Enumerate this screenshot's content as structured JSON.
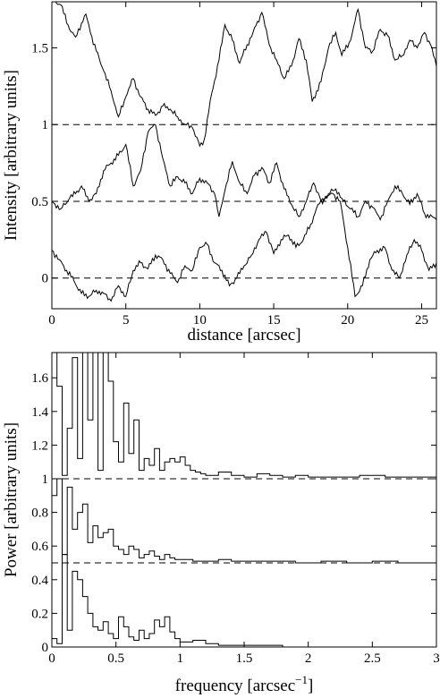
{
  "chart_data": [
    {
      "type": "line",
      "xlabel": "distance [arcsec]",
      "ylabel": "Intensity [arbitrary units]",
      "xlim": [
        0,
        26
      ],
      "ylim": [
        -0.2,
        1.8
      ],
      "xticks": [
        "0",
        "5",
        "10",
        "15",
        "20",
        "25"
      ],
      "yticks": [
        "0",
        "0.5",
        "1",
        "1.5"
      ],
      "reference_levels": [
        0,
        0.5,
        1
      ],
      "series": [
        {
          "x": [
            0,
            0.6,
            1.2,
            1.6,
            2,
            2.3,
            2.6,
            3,
            3.5,
            4,
            4.5,
            5,
            5.5,
            6,
            6.5,
            7,
            7.5,
            8,
            8.5,
            9,
            9.5,
            10,
            10.3,
            10.8,
            11.3,
            11.7,
            12.2,
            12.7,
            13.2,
            13.6,
            14.2,
            14.7,
            15.2,
            15.7,
            16.2,
            16.7,
            17.2,
            17.6,
            18.2,
            18.7,
            19.2,
            19.6,
            20.2,
            20.7,
            21.2,
            21.7,
            22.2,
            22.7,
            23.2,
            23.7,
            24.2,
            24.7,
            25.2,
            25.6,
            26
          ],
          "values": [
            1.82,
            1.78,
            1.62,
            1.57,
            1.66,
            1.72,
            1.6,
            1.48,
            1.35,
            1.22,
            1.05,
            1.18,
            1.3,
            1.18,
            1.1,
            1.06,
            1.12,
            1.1,
            1.05,
            1.0,
            0.98,
            0.86,
            0.9,
            1.2,
            1.42,
            1.65,
            1.55,
            1.4,
            1.52,
            1.6,
            1.73,
            1.52,
            1.42,
            1.3,
            1.38,
            1.56,
            1.42,
            1.15,
            1.28,
            1.5,
            1.6,
            1.45,
            1.55,
            1.75,
            1.5,
            1.48,
            1.62,
            1.58,
            1.42,
            1.45,
            1.55,
            1.5,
            1.6,
            1.52,
            1.38
          ]
        },
        {
          "x": [
            0,
            0.6,
            1.2,
            1.6,
            2,
            2.5,
            3,
            3.5,
            4,
            4.5,
            5,
            5.5,
            6,
            6.5,
            7,
            7.5,
            8,
            8.5,
            9,
            9.5,
            10,
            10.5,
            11,
            11.3,
            11.7,
            12.2,
            12.7,
            13.2,
            13.7,
            14.2,
            14.7,
            15.2,
            15.7,
            16.2,
            16.7,
            17.2,
            17.7,
            18.2,
            18.7,
            19.2,
            19.6,
            20.2,
            20.7,
            21.2,
            21.7,
            22.2,
            22.7,
            23.2,
            23.7,
            24.2,
            24.7,
            25.2,
            26
          ],
          "values": [
            0.5,
            0.45,
            0.52,
            0.55,
            0.6,
            0.5,
            0.55,
            0.7,
            0.75,
            0.8,
            0.87,
            0.6,
            0.7,
            0.95,
            1.0,
            0.78,
            0.6,
            0.66,
            0.62,
            0.55,
            0.65,
            0.62,
            0.55,
            0.4,
            0.57,
            0.76,
            0.62,
            0.55,
            0.67,
            0.72,
            0.62,
            0.75,
            0.58,
            0.48,
            0.4,
            0.5,
            0.62,
            0.5,
            0.55,
            0.58,
            0.52,
            0.45,
            0.4,
            0.5,
            0.46,
            0.38,
            0.5,
            0.6,
            0.55,
            0.48,
            0.55,
            0.42,
            0.38
          ]
        },
        {
          "x": [
            0,
            0.5,
            1,
            1.5,
            2,
            2.5,
            3,
            3.5,
            4,
            4.5,
            5,
            5.5,
            6,
            6.5,
            7,
            7.5,
            8,
            8.5,
            9,
            9.5,
            10,
            10.5,
            11,
            11.5,
            12,
            12.5,
            13,
            13.5,
            14,
            14.5,
            15,
            15.5,
            16,
            16.5,
            17,
            17.5,
            18,
            18.5,
            19,
            19.5,
            20,
            20.5,
            21,
            21.5,
            22,
            22.5,
            23,
            23.5,
            24,
            24.5,
            25,
            25.5,
            26
          ],
          "values": [
            0.18,
            0.12,
            0.05,
            -0.02,
            -0.1,
            -0.12,
            -0.08,
            -0.1,
            -0.15,
            -0.05,
            -0.12,
            0.05,
            0.1,
            0.06,
            0.15,
            0.12,
            0.03,
            -0.03,
            0.08,
            0.05,
            0.2,
            0.22,
            0.1,
            0.05,
            -0.05,
            0.0,
            0.08,
            0.15,
            0.25,
            0.3,
            0.16,
            0.25,
            0.28,
            0.2,
            0.25,
            0.35,
            0.48,
            0.52,
            0.55,
            0.5,
            0.2,
            -0.12,
            -0.05,
            0.12,
            0.18,
            0.2,
            0.05,
            0.0,
            0.15,
            0.25,
            0.18,
            0.05,
            0.1
          ]
        }
      ]
    },
    {
      "type": "line",
      "xlabel": "frequency [arcsec",
      "xlabel_sup": "−1",
      "xlabel_end": "]",
      "ylabel": "Power [arbitrary units]",
      "xlim": [
        0,
        3
      ],
      "ylim": [
        0,
        1.75
      ],
      "xticks": [
        "0",
        "0.5",
        "1",
        "1.5",
        "2",
        "2.5",
        "3"
      ],
      "yticks": [
        "0",
        "0.2",
        "0.4",
        "0.6",
        "0.8",
        "1",
        "1.2",
        "1.4",
        "1.6"
      ],
      "reference_levels": [
        0.5,
        1
      ],
      "series": [
        {
          "x": [
            0,
            0.04,
            0.08,
            0.12,
            0.16,
            0.2,
            0.24,
            0.28,
            0.32,
            0.36,
            0.4,
            0.44,
            0.48,
            0.52,
            0.56,
            0.6,
            0.64,
            0.68,
            0.72,
            0.76,
            0.8,
            0.84,
            0.88,
            0.92,
            0.96,
            1.0,
            1.04,
            1.08,
            1.12,
            1.16,
            1.2,
            1.3,
            1.4,
            1.5,
            1.6,
            1.7,
            1.8,
            1.9,
            2.0,
            2.2,
            2.4,
            2.6,
            2.8,
            3.0
          ],
          "values": [
            1.75,
            1.55,
            1.02,
            1.3,
            1.72,
            1.12,
            1.75,
            1.35,
            1.75,
            1.05,
            1.75,
            1.58,
            1.22,
            1.1,
            1.45,
            1.15,
            1.35,
            1.05,
            1.12,
            1.08,
            1.18,
            1.05,
            1.1,
            1.12,
            1.1,
            1.13,
            1.08,
            1.05,
            1.04,
            1.03,
            1.02,
            1.04,
            1.02,
            1.01,
            1.03,
            1.02,
            1.01,
            1.02,
            1.01,
            1.01,
            1.02,
            1.01,
            1.01,
            1.01
          ]
        },
        {
          "x": [
            0,
            0.04,
            0.08,
            0.12,
            0.16,
            0.2,
            0.24,
            0.28,
            0.32,
            0.36,
            0.4,
            0.44,
            0.48,
            0.52,
            0.56,
            0.6,
            0.64,
            0.68,
            0.72,
            0.76,
            0.8,
            0.84,
            0.88,
            0.92,
            0.96,
            1.0,
            1.1,
            1.2,
            1.3,
            1.4,
            1.5,
            1.7,
            1.9,
            2.1,
            2.3,
            2.5,
            2.7,
            2.9,
            3.0
          ],
          "values": [
            0.9,
            1.0,
            0.55,
            0.95,
            0.7,
            0.8,
            0.85,
            0.62,
            0.72,
            0.65,
            0.68,
            0.7,
            0.6,
            0.58,
            0.55,
            0.6,
            0.58,
            0.53,
            0.55,
            0.57,
            0.54,
            0.52,
            0.55,
            0.53,
            0.52,
            0.52,
            0.51,
            0.51,
            0.52,
            0.51,
            0.51,
            0.51,
            0.5,
            0.51,
            0.5,
            0.51,
            0.5,
            0.5,
            0.5
          ]
        },
        {
          "x": [
            0,
            0.04,
            0.08,
            0.12,
            0.16,
            0.2,
            0.24,
            0.28,
            0.32,
            0.36,
            0.4,
            0.44,
            0.48,
            0.52,
            0.56,
            0.6,
            0.64,
            0.68,
            0.72,
            0.76,
            0.8,
            0.84,
            0.88,
            0.92,
            0.96,
            1.0,
            1.1,
            1.2,
            1.3,
            1.4,
            1.6,
            1.8,
            2.0,
            2.5,
            3.0
          ],
          "values": [
            0.05,
            0.02,
            0.55,
            0.1,
            0.45,
            0.4,
            0.3,
            0.2,
            0.12,
            0.1,
            0.15,
            0.08,
            0.05,
            0.18,
            0.12,
            0.06,
            0.04,
            0.1,
            0.05,
            0.08,
            0.16,
            0.12,
            0.18,
            0.09,
            0.05,
            0.03,
            0.04,
            0.02,
            0.01,
            0.01,
            0.01,
            0.0,
            0.0,
            0.0,
            0.0
          ]
        }
      ]
    }
  ]
}
